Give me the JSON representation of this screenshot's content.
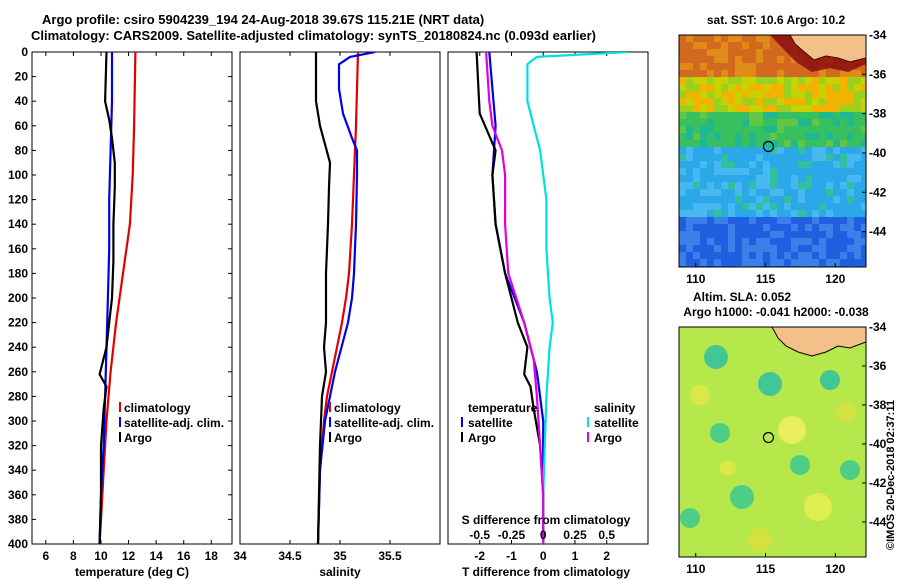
{
  "header": {
    "line1": "Argo profile: csiro 5904239_194 24-Aug-2018 39.67S 115.21E (NRT data)",
    "line2": "Climatology: CARS2009. Satellite-adjusted climatology: synTS_20180824.nc (0.093d earlier)"
  },
  "colors": {
    "climatology": "#e00000",
    "satellite": "#0000e0",
    "argo": "#000000",
    "argo_s": "#e000e0",
    "sat_s": "#00e0e0"
  },
  "chart_data": [
    {
      "type": "line",
      "name": "temperature-panel",
      "xlabel": "temperature (deg C)",
      "xlim": [
        5,
        19.5
      ],
      "ylim": [
        400,
        0
      ],
      "x_ticks": [
        6,
        8,
        10,
        12,
        14,
        16,
        18
      ],
      "y_ticks": [
        0,
        20,
        40,
        60,
        80,
        100,
        120,
        140,
        160,
        180,
        200,
        220,
        240,
        260,
        280,
        300,
        320,
        340,
        360,
        380,
        400
      ],
      "legend": [
        "climatology",
        "satellite-adj. clim.",
        "Argo"
      ],
      "series": [
        {
          "name": "climatology",
          "color": "#e00000",
          "depth": [
            0,
            60,
            100,
            140,
            180,
            220,
            260,
            300,
            340,
            380,
            400
          ],
          "x": [
            12.5,
            12.4,
            12.3,
            12.1,
            11.6,
            11.1,
            10.7,
            10.4,
            10.2,
            10.0,
            9.9
          ]
        },
        {
          "name": "satellite-adj. clim.",
          "color": "#0000e0",
          "depth": [
            0,
            40,
            80,
            120,
            160,
            200,
            240,
            280,
            320,
            360,
            400
          ],
          "x": [
            10.8,
            10.8,
            10.7,
            10.6,
            10.6,
            10.5,
            10.4,
            10.3,
            10.2,
            10.0,
            9.9
          ]
        },
        {
          "name": "Argo",
          "color": "#000000",
          "depth": [
            0,
            40,
            55,
            70,
            90,
            110,
            140,
            170,
            200,
            220,
            240,
            262,
            272,
            290,
            320,
            360,
            400
          ],
          "x": [
            10.4,
            10.3,
            10.6,
            10.8,
            11.0,
            11.0,
            10.9,
            10.9,
            10.8,
            10.6,
            10.4,
            9.9,
            10.4,
            10.2,
            10.0,
            10.0,
            9.9
          ]
        }
      ]
    },
    {
      "type": "line",
      "name": "salinity-panel",
      "xlabel": "salinity",
      "xlim": [
        34,
        36
      ],
      "ylim": [
        400,
        0
      ],
      "x_ticks": [
        34,
        34.5,
        35,
        35.5
      ],
      "legend": [
        "climatology",
        "satellite-adj. clim.",
        "Argo"
      ],
      "series": [
        {
          "name": "climatology",
          "color": "#e00000",
          "depth": [
            0,
            60,
            100,
            140,
            180,
            200,
            220,
            240,
            260,
            280,
            300,
            340,
            400
          ],
          "x": [
            35.18,
            35.16,
            35.14,
            35.12,
            35.09,
            35.06,
            35.02,
            34.97,
            34.92,
            34.87,
            34.84,
            34.8,
            34.78
          ]
        },
        {
          "name": "satellite-adj. clim.",
          "color": "#0000e0",
          "depth": [
            0,
            4,
            10,
            30,
            50,
            70,
            80,
            100,
            140,
            180,
            200,
            220,
            260,
            300,
            340,
            400
          ],
          "x": [
            35.35,
            35.1,
            34.99,
            34.99,
            35.03,
            35.12,
            35.17,
            35.17,
            35.16,
            35.14,
            35.12,
            35.08,
            34.95,
            34.85,
            34.8,
            34.78
          ]
        },
        {
          "name": "Argo",
          "color": "#000000",
          "depth": [
            0,
            40,
            60,
            90,
            110,
            140,
            180,
            220,
            240,
            260,
            280,
            320,
            360,
            400
          ],
          "x": [
            34.76,
            34.76,
            34.8,
            34.9,
            34.89,
            34.88,
            34.86,
            34.86,
            34.84,
            34.86,
            34.82,
            34.8,
            34.79,
            34.78
          ]
        }
      ]
    },
    {
      "type": "line",
      "name": "difference-panel",
      "xlabel": "T difference from climatology",
      "top_label": "S difference from climatology",
      "xlim": [
        -3,
        3.3
      ],
      "ylim": [
        400,
        0
      ],
      "x_ticks": [
        -2,
        -1,
        0,
        1,
        2
      ],
      "s_ticks": [
        "-0.5",
        "-0.25",
        "0",
        "0.25",
        "0.5"
      ],
      "legend_left_title": "temperature",
      "legend_right_title": "salinity",
      "legend": [
        "satellite",
        "Argo",
        "satellite",
        "Argo"
      ],
      "series": [
        {
          "name": "T satellite",
          "color": "#0000e0",
          "depth": [
            0,
            60,
            100,
            140,
            180,
            220,
            260,
            300,
            340,
            400
          ],
          "x": [
            -1.7,
            -1.5,
            -1.6,
            -1.5,
            -1.2,
            -0.6,
            -0.2,
            0.0,
            0.0,
            0.0
          ]
        },
        {
          "name": "T Argo",
          "color": "#000000",
          "depth": [
            0,
            50,
            80,
            100,
            140,
            180,
            220,
            240,
            262,
            272,
            290,
            320,
            360,
            400
          ],
          "x": [
            -2.1,
            -2.0,
            -1.5,
            -1.6,
            -1.5,
            -1.2,
            -0.8,
            -0.5,
            -0.6,
            -0.4,
            -0.3,
            -0.1,
            0.0,
            0.0
          ]
        },
        {
          "name": "S satellite",
          "color": "#00e0e0",
          "depth": [
            0,
            4,
            10,
            40,
            80,
            120,
            160,
            200,
            220,
            240,
            280,
            320,
            360,
            400
          ],
          "x": [
            2.7,
            -0.2,
            -0.5,
            -0.5,
            -0.1,
            0.1,
            0.1,
            0.2,
            0.3,
            0.2,
            0.1,
            0.05,
            0.0,
            0.0
          ]
        },
        {
          "name": "S Argo",
          "color": "#e000e0",
          "depth": [
            0,
            40,
            60,
            80,
            100,
            140,
            180,
            220,
            250,
            280,
            320,
            360,
            400
          ],
          "x": [
            -1.8,
            -1.7,
            -1.6,
            -1.3,
            -1.2,
            -1.2,
            -1.1,
            -0.6,
            -0.3,
            -0.2,
            -0.1,
            0.0,
            0.0
          ]
        }
      ]
    },
    {
      "type": "heatmap",
      "name": "sst-map",
      "title": "sat. SST: 10.6 Argo: 10.2",
      "x_ticks": [
        110,
        115,
        120
      ],
      "y_ticks": [
        -34,
        -36,
        -38,
        -40,
        -42,
        -44
      ],
      "xlim": [
        108.8,
        122.2
      ],
      "ylim": [
        -34,
        -45.8
      ],
      "marker": {
        "lon": 115.21,
        "lat": -39.67
      }
    },
    {
      "type": "heatmap",
      "name": "sla-map",
      "title_line1": "Altim. SLA: 0.052",
      "title_line2": "Argo h1000: -0.041 h2000: -0.038",
      "x_ticks": [
        110,
        115,
        120
      ],
      "y_ticks": [
        -34,
        -36,
        -38,
        -40,
        -42,
        -44
      ],
      "xlim": [
        108.8,
        122.2
      ],
      "ylim": [
        -34,
        -45.8
      ],
      "marker": {
        "lon": 115.21,
        "lat": -39.67
      }
    }
  ],
  "watermark": "©IMOS 20-Dec-2018 02:37:11"
}
